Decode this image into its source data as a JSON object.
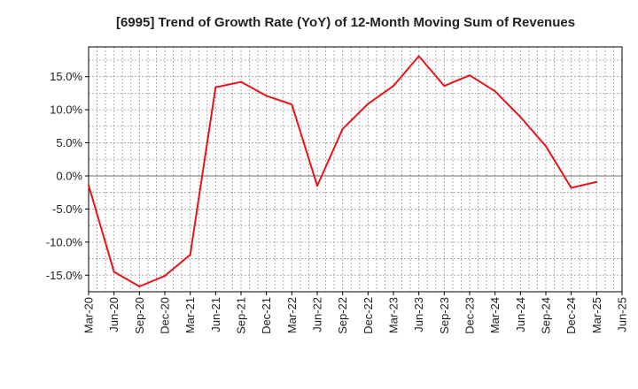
{
  "chart_data": {
    "type": "line",
    "title": "[6995]  Trend of Growth Rate (YoY) of 12-Month Moving Sum of Revenues",
    "xlabel": "",
    "ylabel": "",
    "x_ticks": [
      "Mar-20",
      "Jun-20",
      "Sep-20",
      "Dec-20",
      "Mar-21",
      "Jun-21",
      "Sep-21",
      "Dec-21",
      "Mar-22",
      "Jun-22",
      "Sep-22",
      "Dec-22",
      "Mar-23",
      "Jun-23",
      "Sep-23",
      "Dec-23",
      "Mar-24",
      "Jun-24",
      "Sep-24",
      "Dec-24",
      "Mar-25",
      "Jun-25"
    ],
    "y_ticks": [
      "15.0%",
      "10.0%",
      "5.0%",
      "0.0%",
      "-5.0%",
      "-10.0%",
      "-15.0%"
    ],
    "y_tick_values": [
      15,
      10,
      5,
      0,
      -5,
      -10,
      -15
    ],
    "ylim": [
      -17.5,
      19.5
    ],
    "grid": true,
    "series": [
      {
        "color": "#e8141a",
        "x": [
          "Mar-20",
          "Jun-20",
          "Sep-20",
          "Dec-20",
          "Mar-21",
          "Jun-21",
          "Sep-21",
          "Dec-21",
          "Mar-22",
          "Jun-22",
          "Sep-22",
          "Dec-22",
          "Mar-23",
          "Jun-23",
          "Sep-23",
          "Dec-23",
          "Mar-24",
          "Jun-24",
          "Sep-24",
          "Dec-24",
          "Mar-25"
        ],
        "values": [
          -1.4,
          -14.5,
          -16.7,
          -15.1,
          -11.9,
          13.4,
          14.2,
          12.1,
          10.8,
          -1.5,
          7.1,
          10.9,
          13.6,
          18.1,
          13.6,
          15.2,
          12.8,
          8.9,
          4.5,
          -1.8,
          -0.9
        ]
      }
    ]
  }
}
